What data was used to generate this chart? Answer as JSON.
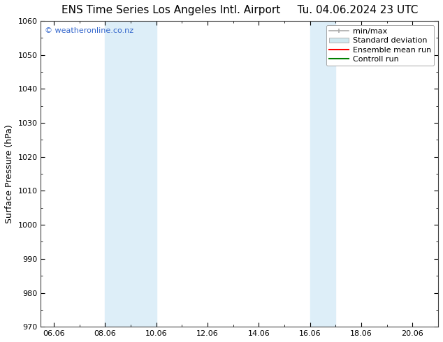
{
  "title": "ENS Time Series Los Angeles Intl. Airport     Tu. 04.06.2024 23 UTC",
  "ylabel": "Surface Pressure (hPa)",
  "ylim": [
    970,
    1060
  ],
  "yticks": [
    970,
    980,
    990,
    1000,
    1010,
    1020,
    1030,
    1040,
    1050,
    1060
  ],
  "xlim_start": 5.5,
  "xlim_end": 21.0,
  "xtick_labels": [
    "06.06",
    "08.06",
    "10.06",
    "12.06",
    "14.06",
    "16.06",
    "18.06",
    "20.06"
  ],
  "xtick_positions": [
    6.0,
    8.0,
    10.0,
    12.0,
    14.0,
    16.0,
    18.0,
    20.0
  ],
  "shaded_bands": [
    {
      "x_start": 8.0,
      "x_end": 10.0
    },
    {
      "x_start": 16.0,
      "x_end": 17.0
    }
  ],
  "shaded_color": "#ddeef8",
  "background_color": "#ffffff",
  "grid_color": "#cccccc",
  "watermark_text": "© weatheronline.co.nz",
  "watermark_color": "#3366cc",
  "legend_entries": [
    {
      "label": "min/max"
    },
    {
      "label": "Standard deviation"
    },
    {
      "label": "Ensemble mean run"
    },
    {
      "label": "Controll run"
    }
  ],
  "legend_colors": [
    "#aaaaaa",
    "#cccccc",
    "#ff0000",
    "#008000"
  ],
  "title_fontsize": 11,
  "axis_fontsize": 9,
  "tick_fontsize": 8,
  "legend_fontsize": 8,
  "watermark_fontsize": 8
}
